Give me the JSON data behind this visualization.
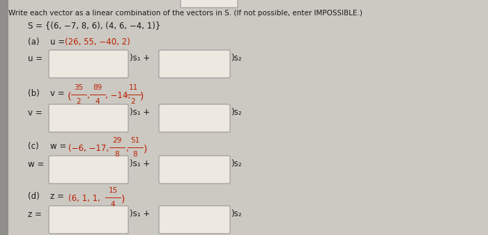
{
  "bg_color": "#ccc8c2",
  "content_bg": "#d8d4ce",
  "title_line": "Write each vector as a linear combination of the vectors in S. (If not possible, enter IMPOSSIBLE.)",
  "set_line": "S = {(6, −7, 8, 6), (4, 6, −4, 1)}",
  "box_color": "#ede8e0",
  "box_edge_color": "#999999",
  "text_color": "#1a1a1a",
  "red_color": "#bb2000",
  "title_fontsize": 7.5,
  "label_fontsize": 8.5,
  "parts": [
    "a",
    "b",
    "c",
    "d"
  ]
}
